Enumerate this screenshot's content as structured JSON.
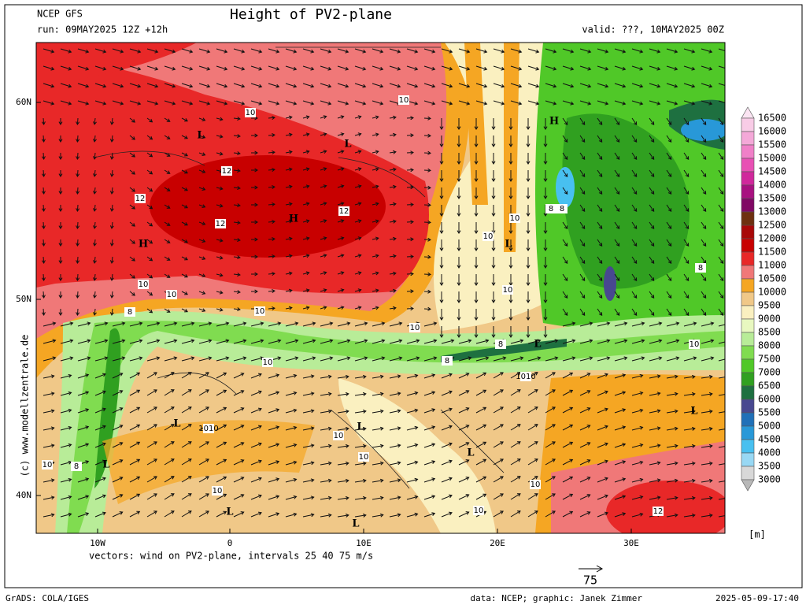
{
  "header": {
    "model": "NCEP GFS",
    "run": "run: 09MAY2025 12Z +12h",
    "title": "Height of PV2-plane",
    "valid": "valid: ???, 10MAY2025 00Z"
  },
  "map": {
    "lat_labels": [
      "60N",
      "50N",
      "40N"
    ],
    "lon_labels": [
      "10W",
      "0",
      "10E",
      "20E",
      "30E"
    ],
    "pressure_centers": [
      "L",
      "L",
      "H",
      "H",
      "H",
      "L",
      "L",
      "L",
      "L",
      "L",
      "L",
      "L",
      "L",
      "L"
    ],
    "contour_labels": [
      "10",
      "10",
      "12",
      "12",
      "12",
      "12",
      "10",
      "10",
      "8",
      "8",
      "10",
      "10",
      "8",
      "10",
      "10",
      "8",
      "10",
      "8",
      "10",
      "10",
      "8",
      "1010",
      "1010",
      "10",
      "10",
      "10",
      "8",
      "10",
      "10",
      "10",
      "12"
    ],
    "copyright": "(c) www.modellzentrale.de"
  },
  "colorbar": {
    "labels": [
      16500,
      16000,
      15500,
      15000,
      14500,
      14000,
      13500,
      13000,
      12500,
      12000,
      11500,
      11000,
      10500,
      10000,
      9500,
      9000,
      8500,
      8000,
      7500,
      7000,
      6500,
      6000,
      5500,
      5000,
      4500,
      4000,
      3500,
      3000
    ],
    "colors": [
      "#fbe4f2",
      "#f8cce6",
      "#f4a8d8",
      "#f080c8",
      "#e850b4",
      "#d0289c",
      "#a81080",
      "#800864",
      "#6e3010",
      "#a80808",
      "#c80000",
      "#e82828",
      "#f07878",
      "#f5a623",
      "#f0c888",
      "#faf0c0",
      "#e8f8c0",
      "#b8ec98",
      "#80dc50",
      "#50c828",
      "#30a020",
      "#1e7040",
      "#484890",
      "#2070b8",
      "#2898d8",
      "#48c0f0",
      "#98d8f4",
      "#d8d8d8",
      "#b8b8b8"
    ],
    "unit": "[m]"
  },
  "footer": {
    "vectors": "vectors: wind on PV2-plane, intervals 25 40 75 m/s",
    "reference_arrow": "75",
    "software": "GrADS: COLA/IGES",
    "credits": "data: NCEP; graphic: Janek Zimmer",
    "timestamp": "2025-05-09-17:40"
  }
}
